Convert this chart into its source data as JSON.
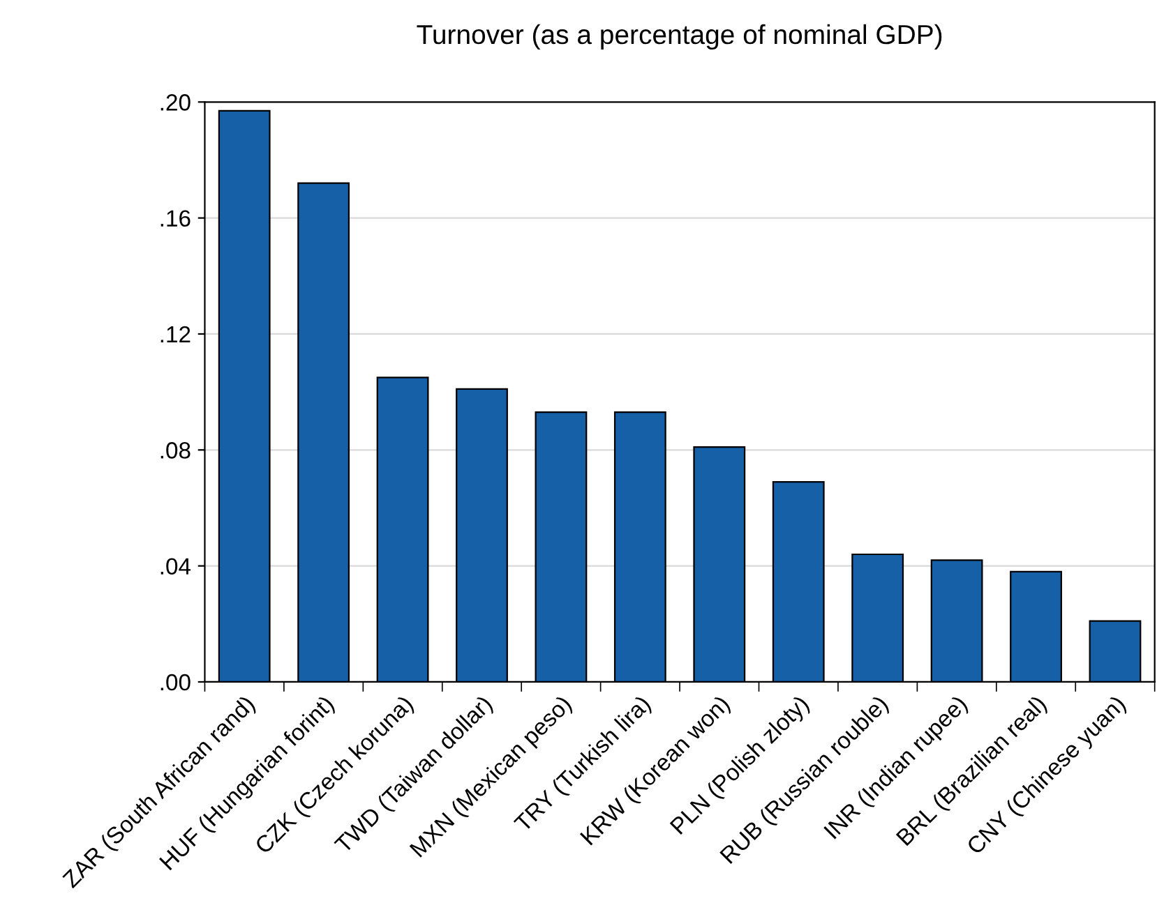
{
  "chart_data": {
    "type": "bar",
    "title": "Turnover (as a percentage of nominal GDP)",
    "categories": [
      "ZAR (South African rand)",
      "HUF (Hungarian forint)",
      "CZK (Czech koruna)",
      "TWD (Taiwan dollar)",
      "MXN (Mexican peso)",
      "TRY (Turkish lira)",
      "KRW (Korean won)",
      "PLN (Polish zloty)",
      "RUB (Russian rouble)",
      "INR (Indian rupee)",
      "BRL (Brazilian real)",
      "CNY (Chinese yuan)"
    ],
    "values": [
      0.197,
      0.172,
      0.105,
      0.101,
      0.093,
      0.093,
      0.081,
      0.069,
      0.044,
      0.042,
      0.038,
      0.021
    ],
    "color": "#1660a8",
    "ylim": [
      0,
      0.2
    ],
    "yticks": [
      {
        "value": 0,
        "label": ".00"
      },
      {
        "value": 0.04,
        "label": ".04"
      },
      {
        "value": 0.08,
        "label": ".08"
      },
      {
        "value": 0.12,
        "label": ".12"
      },
      {
        "value": 0.16,
        "label": ".16"
      },
      {
        "value": 0.2,
        "label": ".20"
      }
    ],
    "grid": "y",
    "legend": false
  }
}
